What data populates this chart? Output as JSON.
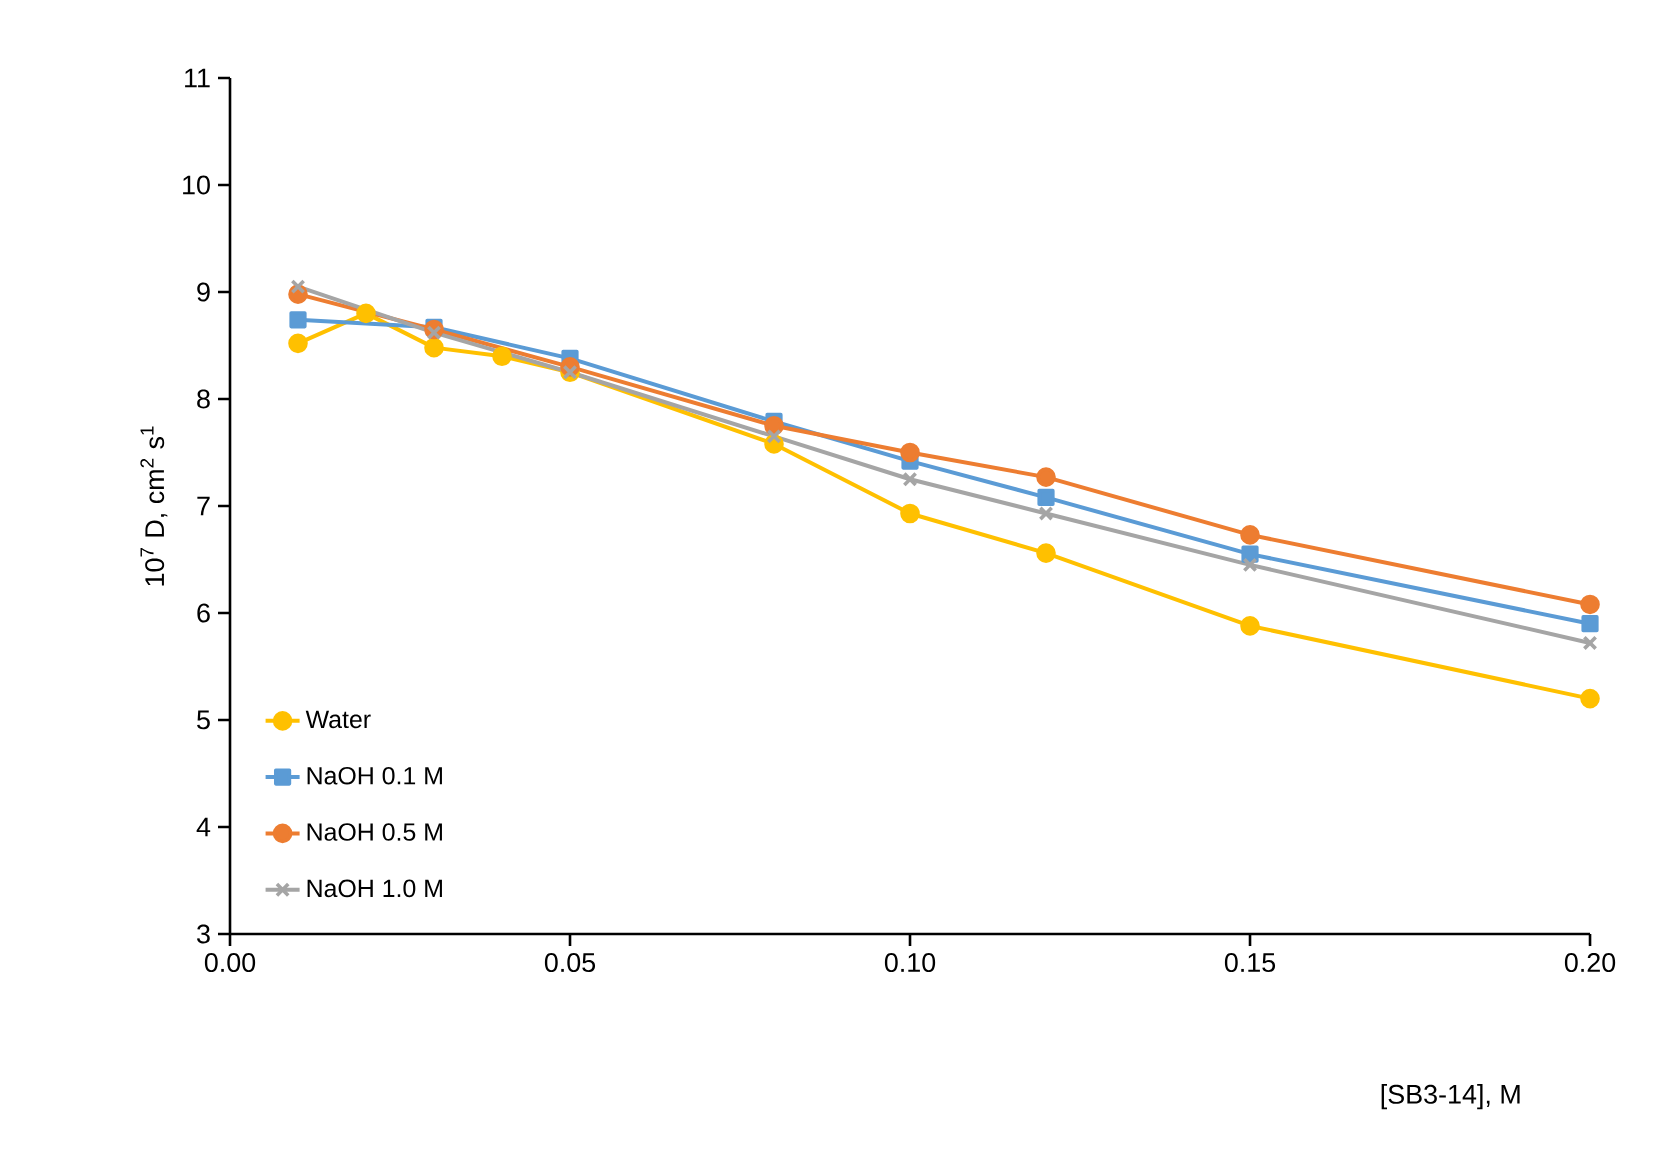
{
  "chart_data": {
    "type": "line",
    "xlabel": "[SB3-14], M",
    "ylabel": "10$^{7}$ D, cm$^{2}$ s$^{1}$",
    "xlim": [
      0,
      0.2
    ],
    "ylim": [
      3,
      11
    ],
    "xticks": [
      {
        "value": 0,
        "label": "0.00"
      },
      {
        "value": 0.05,
        "label": "0.05"
      },
      {
        "value": 0.1,
        "label": "0.10"
      },
      {
        "value": 0.15,
        "label": "0.15"
      },
      {
        "value": 0.2,
        "label": "0.20"
      }
    ],
    "yticks": [
      3,
      4,
      5,
      6,
      7,
      8,
      9,
      10,
      11
    ],
    "grid": false,
    "legend": "bottom left",
    "line_style": "solid",
    "series": [
      {
        "name": "Water",
        "color": "#ffc000",
        "marker": "circle",
        "x": [
          0.01,
          0.02,
          0.03,
          0.04,
          0.05,
          0.08,
          0.1,
          0.12,
          0.15,
          0.2
        ],
        "values": [
          8.52,
          8.8,
          8.48,
          8.4,
          8.25,
          7.58,
          6.93,
          6.56,
          5.88,
          5.2
        ]
      },
      {
        "name": "NaOH 0.1 M",
        "color": "#5b9bd5",
        "marker": "square",
        "x": [
          0.01,
          0.03,
          0.05,
          0.08,
          0.1,
          0.12,
          0.15,
          0.2
        ],
        "values": [
          8.74,
          8.67,
          8.38,
          7.79,
          7.42,
          7.08,
          6.55,
          5.9
        ]
      },
      {
        "name": "NaOH 0.5 M",
        "color": "#ed7d31",
        "marker": "circle",
        "x": [
          0.01,
          0.03,
          0.05,
          0.08,
          0.1,
          0.12,
          0.15,
          0.2
        ],
        "values": [
          8.98,
          8.65,
          8.3,
          7.75,
          7.5,
          7.27,
          6.73,
          6.08
        ]
      },
      {
        "name": "NaOH 1.0 M",
        "color": "#a5a5a5",
        "marker": "cross",
        "x": [
          0.01,
          0.03,
          0.05,
          0.08,
          0.1,
          0.12,
          0.15,
          0.2
        ],
        "values": [
          9.05,
          8.62,
          8.25,
          7.65,
          7.25,
          6.93,
          6.45,
          5.72
        ]
      }
    ]
  }
}
